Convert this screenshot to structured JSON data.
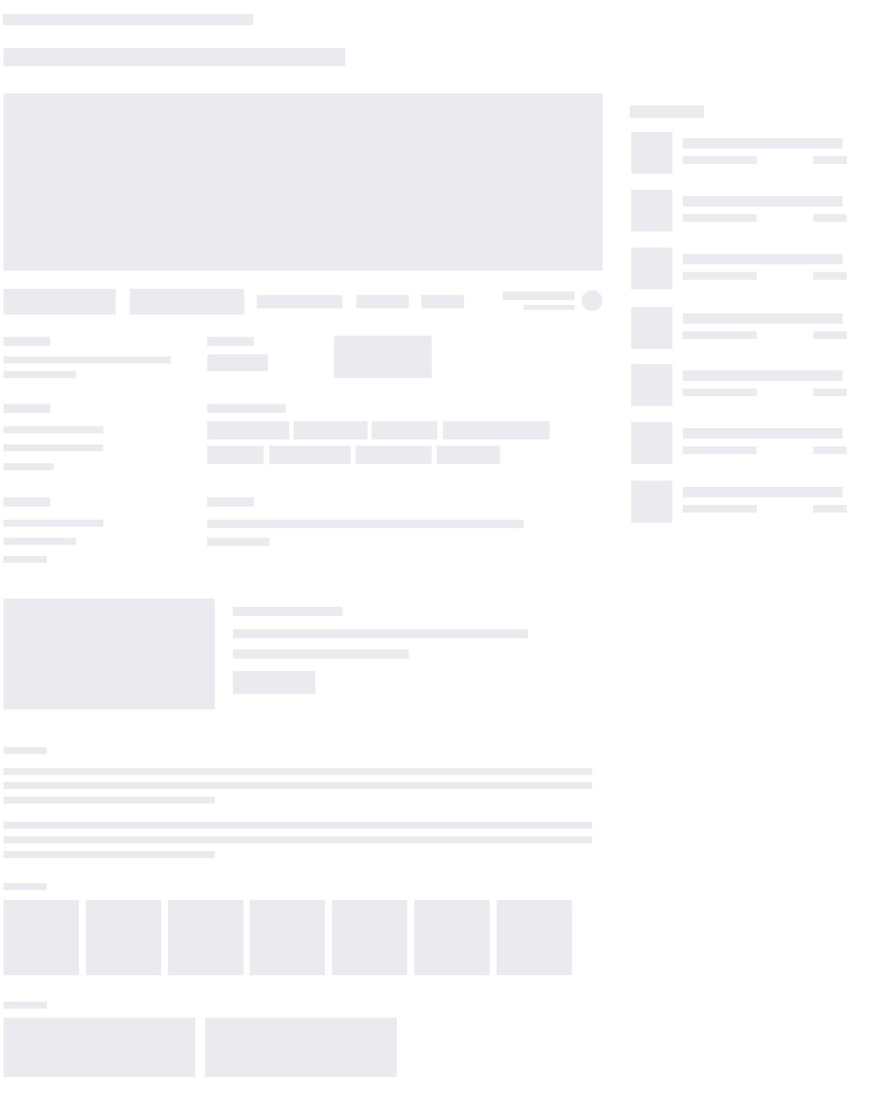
{
  "theme": {
    "skeleton_color": "#ebeaef",
    "background": "#ffffff"
  }
}
